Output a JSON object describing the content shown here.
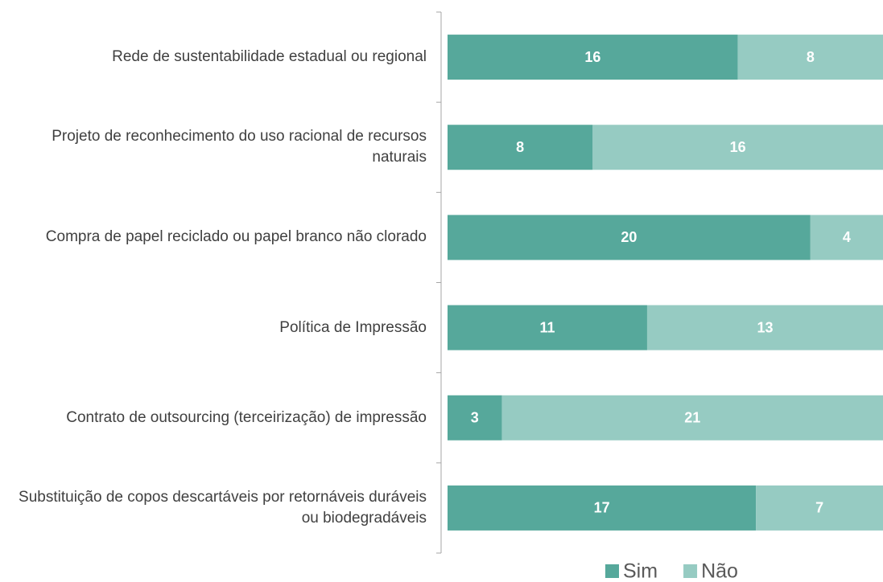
{
  "chart_data": {
    "type": "stacked-barh",
    "categories": [
      "Rede de sustentabilidade estadual ou regional",
      "Projeto de reconhecimento do uso racional de recursos naturais",
      "Compra de papel reciclado ou papel branco não clorado",
      "Política de Impressão",
      "Contrato de outsourcing (terceirização) de impressão",
      "Substituição de copos descartáveis por retornáveis duráveis ou biodegradáveis"
    ],
    "series": [
      {
        "name": "Sim",
        "color": "#56a89b",
        "values": [
          16,
          8,
          20,
          11,
          3,
          17
        ]
      },
      {
        "name": "Não",
        "color": "#96cbc2",
        "values": [
          8,
          16,
          4,
          13,
          21,
          7
        ]
      }
    ],
    "legend": "bottom"
  }
}
